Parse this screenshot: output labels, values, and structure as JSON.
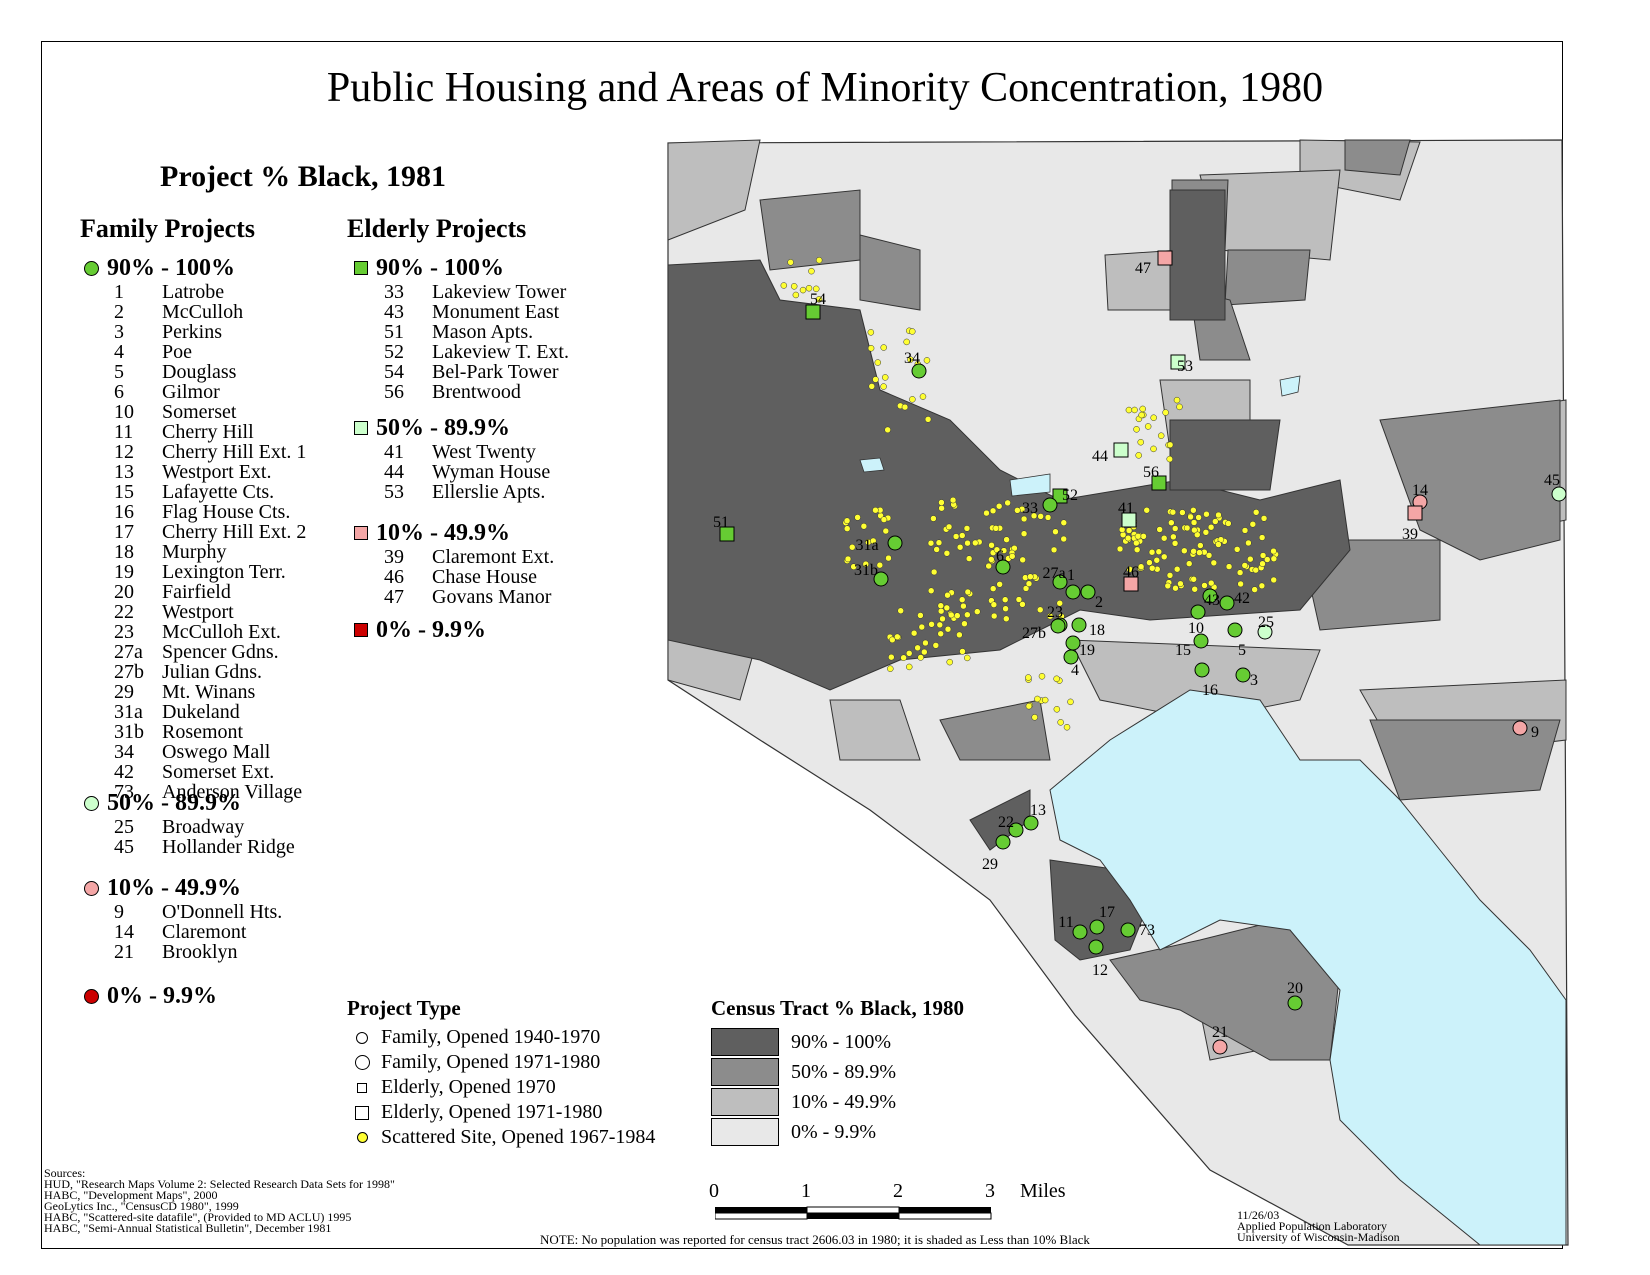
{
  "title": "Public Housing and Areas of Minority Concentration, 1980",
  "subtitle": "Project % Black, 1981",
  "family": {
    "heading": "Family Projects",
    "groups": [
      {
        "label": "90% - 100%",
        "color": "#66cc33",
        "items": [
          {
            "id": "1",
            "name": "Latrobe"
          },
          {
            "id": "2",
            "name": "McCulloh"
          },
          {
            "id": "3",
            "name": "Perkins"
          },
          {
            "id": "4",
            "name": "Poe"
          },
          {
            "id": "5",
            "name": "Douglass"
          },
          {
            "id": "6",
            "name": "Gilmor"
          },
          {
            "id": "10",
            "name": "Somerset"
          },
          {
            "id": "11",
            "name": "Cherry Hill"
          },
          {
            "id": "12",
            "name": "Cherry Hill Ext. 1"
          },
          {
            "id": "13",
            "name": "Westport Ext."
          },
          {
            "id": "15",
            "name": "Lafayette Cts."
          },
          {
            "id": "16",
            "name": "Flag House Cts."
          },
          {
            "id": "17",
            "name": "Cherry Hill Ext. 2"
          },
          {
            "id": "18",
            "name": "Murphy"
          },
          {
            "id": "19",
            "name": "Lexington Terr."
          },
          {
            "id": "20",
            "name": "Fairfield"
          },
          {
            "id": "22",
            "name": "Westport"
          },
          {
            "id": "23",
            "name": "McCulloh Ext."
          },
          {
            "id": "27a",
            "name": "Spencer Gdns."
          },
          {
            "id": "27b",
            "name": "Julian Gdns."
          },
          {
            "id": "29",
            "name": "Mt. Winans"
          },
          {
            "id": "31a",
            "name": "Dukeland"
          },
          {
            "id": "31b",
            "name": "Rosemont"
          },
          {
            "id": "34",
            "name": "Oswego Mall"
          },
          {
            "id": "42",
            "name": "Somerset Ext."
          },
          {
            "id": "73",
            "name": "Anderson Village"
          }
        ]
      },
      {
        "label": "50% - 89.9%",
        "color": "#ccffcc",
        "items": [
          {
            "id": "25",
            "name": "Broadway"
          },
          {
            "id": "45",
            "name": "Hollander Ridge"
          }
        ]
      },
      {
        "label": "10% - 49.9%",
        "color": "#f4a6a6",
        "items": [
          {
            "id": "9",
            "name": "O'Donnell Hts."
          },
          {
            "id": "14",
            "name": "Claremont"
          },
          {
            "id": "21",
            "name": "Brooklyn"
          }
        ]
      },
      {
        "label": "0% - 9.9%",
        "color": "#cc0000",
        "items": []
      }
    ]
  },
  "elderly": {
    "heading": "Elderly Projects",
    "groups": [
      {
        "label": "90% - 100%",
        "color": "#66cc33",
        "items": [
          {
            "id": "33",
            "name": "Lakeview Tower"
          },
          {
            "id": "43",
            "name": "Monument East"
          },
          {
            "id": "51",
            "name": "Mason Apts."
          },
          {
            "id": "52",
            "name": "Lakeview T. Ext."
          },
          {
            "id": "54",
            "name": "Bel-Park Tower"
          },
          {
            "id": "56",
            "name": "Brentwood"
          }
        ]
      },
      {
        "label": "50% - 89.9%",
        "color": "#ccffcc",
        "items": [
          {
            "id": "41",
            "name": "West Twenty"
          },
          {
            "id": "44",
            "name": "Wyman House"
          },
          {
            "id": "53",
            "name": "Ellerslie Apts."
          }
        ]
      },
      {
        "label": "10% - 49.9%",
        "color": "#f4a6a6",
        "items": [
          {
            "id": "39",
            "name": "Claremont Ext."
          },
          {
            "id": "46",
            "name": "Chase House"
          },
          {
            "id": "47",
            "name": "Govans Manor"
          }
        ]
      },
      {
        "label": "0% - 9.9%",
        "color": "#cc0000",
        "items": []
      }
    ]
  },
  "project_type": {
    "heading": "Project Type",
    "items": [
      {
        "label": "Family, Opened 1940-1970",
        "symbol": "circle-small"
      },
      {
        "label": "Family, Opened 1971-1980",
        "symbol": "circle-large"
      },
      {
        "label": "Elderly, Opened 1970",
        "symbol": "square-small"
      },
      {
        "label": "Elderly, Opened 1971-1980",
        "symbol": "square-large"
      },
      {
        "label": "Scattered Site, Opened 1967-1984",
        "symbol": "yellow-dot"
      }
    ]
  },
  "tract_legend": {
    "heading": "Census Tract % Black, 1980",
    "items": [
      {
        "label": "90% - 100%",
        "color": "#5f5f5f"
      },
      {
        "label": "50% - 89.9%",
        "color": "#8c8c8c"
      },
      {
        "label": "10% - 49.9%",
        "color": "#bebebe"
      },
      {
        "label": "0% - 9.9%",
        "color": "#e8e8e8"
      }
    ]
  },
  "scale": {
    "ticks": [
      "0",
      "1",
      "2",
      "3"
    ],
    "unit": "Miles"
  },
  "sources": [
    "Sources:",
    "HUD, \"Research Maps Volume 2: Selected Research Data Sets for 1998\"",
    "HABC, \"Development Maps\", 2000",
    "GeoLytics Inc., \"CensusCD 1980\", 1999",
    "HABC, \"Scattered-site datafile\", (Provided to MD ACLU) 1995",
    "HABC, \"Semi-Annual Statistical Bulletin\", December 1981"
  ],
  "note": "NOTE: No population was reported for census tract 2606.03 in 1980; it is shaded as Less than 10% Black",
  "credit": [
    "11/26/03",
    "Applied Population Laboratory",
    "University of Wisconsin-Madison"
  ],
  "map_labels": [
    "54",
    "34",
    "47",
    "53",
    "44",
    "56",
    "52",
    "33",
    "41",
    "51",
    "31a",
    "31b",
    "6",
    "27a",
    "1",
    "2",
    "23",
    "27b",
    "18",
    "19",
    "4",
    "46",
    "43",
    "42",
    "10",
    "25",
    "15",
    "5",
    "3",
    "16",
    "14",
    "39",
    "45",
    "9",
    "22",
    "13",
    "29",
    "11",
    "17",
    "73",
    "12",
    "20",
    "21"
  ]
}
